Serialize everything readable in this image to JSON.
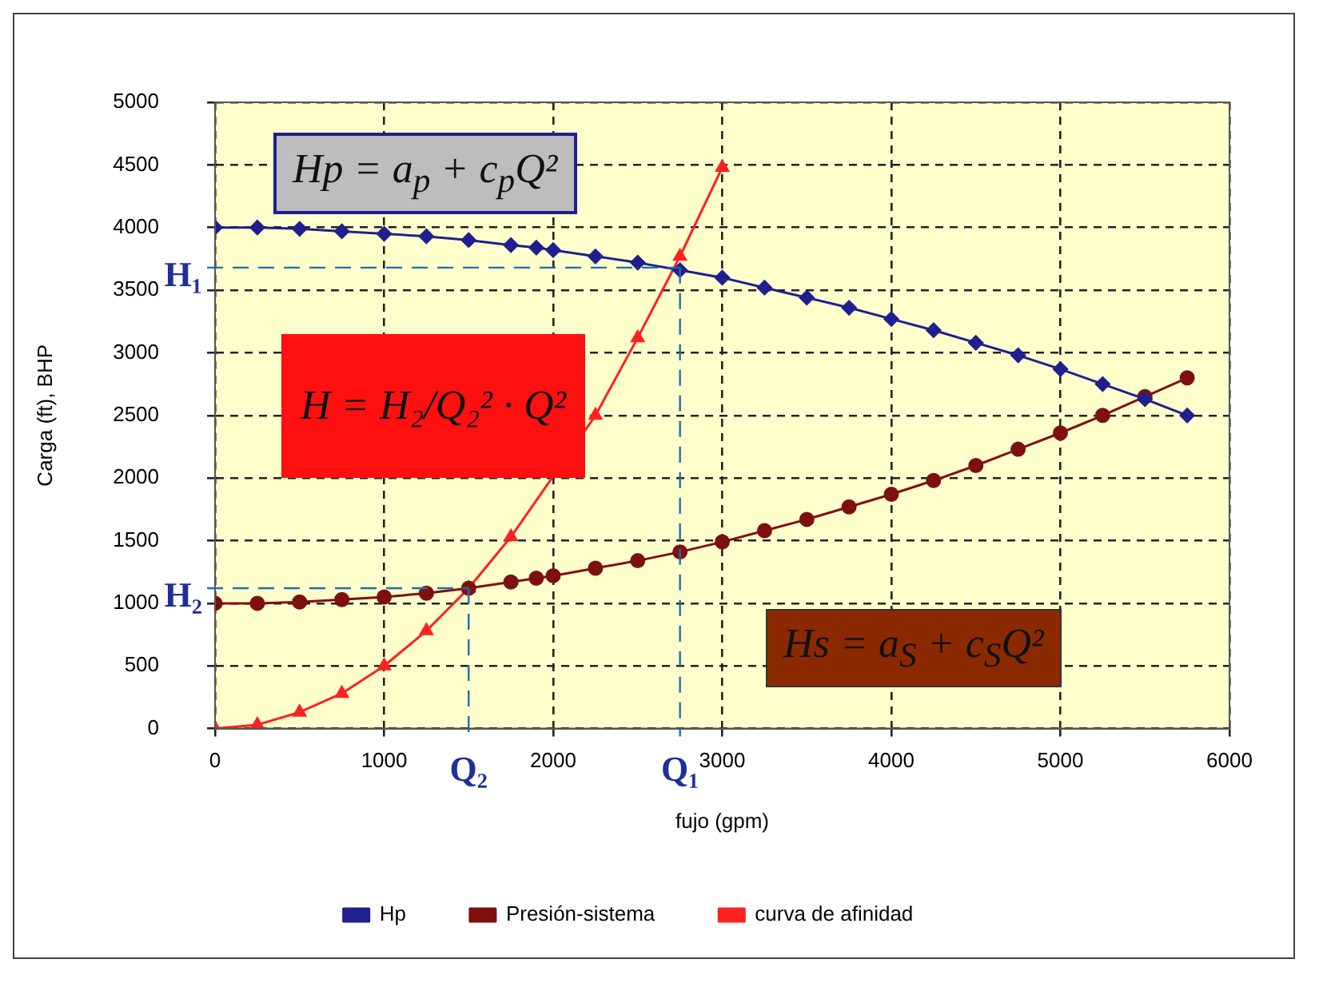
{
  "chart_data": {
    "type": "line",
    "xlabel": "fujo (gpm)",
    "ylabel": "Carga (ft), BHP",
    "xlim": [
      0,
      6000
    ],
    "xticks": [
      0,
      1000,
      2000,
      3000,
      4000,
      5000,
      6000
    ],
    "ylim": [
      0,
      5000
    ],
    "yticks": [
      0,
      500,
      1000,
      1500,
      2000,
      2500,
      3000,
      3500,
      4000,
      4500,
      5000
    ],
    "grid": true,
    "legend": "bottom",
    "line_style": "solid",
    "series": [
      {
        "name": "Hp",
        "color": "#1f1f8f",
        "marker": "diamond",
        "x": [
          0,
          250,
          500,
          750,
          1000,
          1250,
          1500,
          1750,
          1900,
          2000,
          2250,
          2500,
          2750,
          3000,
          3250,
          3500,
          3750,
          4000,
          4250,
          4500,
          4750,
          5000,
          5250,
          5500,
          5750
        ],
        "values": [
          4000,
          4000,
          3990,
          3970,
          3950,
          3930,
          3900,
          3860,
          3840,
          3820,
          3770,
          3720,
          3660,
          3600,
          3520,
          3440,
          3360,
          3270,
          3180,
          3080,
          2980,
          2870,
          2750,
          2630,
          2500
        ]
      },
      {
        "name": "Presión-sistema",
        "color": "#7f1010",
        "marker": "circle",
        "x": [
          0,
          250,
          500,
          750,
          1000,
          1250,
          1500,
          1750,
          1900,
          2000,
          2250,
          2500,
          2750,
          3000,
          3250,
          3500,
          3750,
          4000,
          4250,
          4500,
          4750,
          5000,
          5250,
          5500,
          5750
        ],
        "values": [
          1000,
          1000,
          1010,
          1030,
          1050,
          1080,
          1120,
          1170,
          1200,
          1220,
          1280,
          1340,
          1410,
          1490,
          1580,
          1670,
          1770,
          1870,
          1980,
          2100,
          2230,
          2360,
          2500,
          2650,
          2800
        ]
      },
      {
        "name": "curva de afinidad",
        "color": "#ff2020",
        "marker": "triangle",
        "x": [
          0,
          250,
          500,
          750,
          1000,
          1250,
          1500,
          1750,
          2250,
          2500,
          2750,
          3000
        ],
        "values": [
          0,
          30,
          130,
          280,
          500,
          780,
          1120,
          1530,
          2500,
          3120,
          3770,
          4480
        ]
      }
    ],
    "annotations": [
      "Hp = a$_{p}$ + c$_{p}$Q²",
      "H = H₂/Q₂² · Q²",
      "Hs = a$_{S}$ + c$_{S}$Q²"
    ],
    "ref_lines": [
      {
        "axis": "y",
        "value": 3680,
        "label": "H₁",
        "color": "#1f6fa8",
        "line_style": "dashed"
      },
      {
        "axis": "x",
        "value": 2750,
        "label": "Q₁",
        "color": "#1f6fa8",
        "line_style": "dashed"
      },
      {
        "axis": "y",
        "value": 1120,
        "label": "H₂",
        "color": "#1f6fa8",
        "line_style": "dashed"
      },
      {
        "axis": "x",
        "value": 1500,
        "label": "Q₂",
        "color": "#1f6fa8",
        "line_style": "dashed"
      }
    ]
  }
}
